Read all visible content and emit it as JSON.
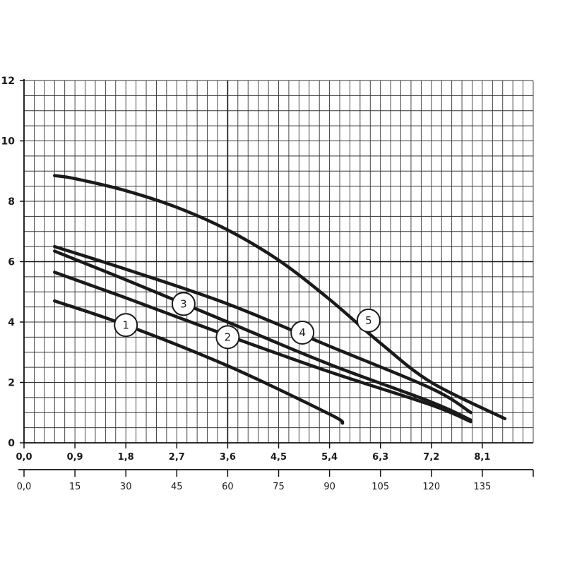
{
  "chart_data": {
    "type": "line",
    "title": "",
    "xlabel": "",
    "ylabel": "",
    "xlim": [
      0,
      9
    ],
    "ylim": [
      0,
      12
    ],
    "grid": true,
    "x_ticks": [
      "0,0",
      "0,9",
      "1,8",
      "2,7",
      "3,6",
      "4,5",
      "5,4",
      "6,3",
      "7,2",
      "8,1"
    ],
    "x_ticks_secondary": [
      "0,0",
      "15",
      "30",
      "45",
      "60",
      "75",
      "90",
      "105",
      "120",
      "135"
    ],
    "y_ticks": [
      "0",
      "2",
      "4",
      "6",
      "8",
      "10",
      "12"
    ],
    "series": [
      {
        "name": "1",
        "x": [
          0.54,
          1.8,
          3.6,
          5.4,
          5.63
        ],
        "y": [
          4.7,
          3.9,
          2.55,
          0.95,
          0.65
        ]
      },
      {
        "name": "2",
        "x": [
          0.54,
          1.8,
          3.6,
          5.4,
          7.2,
          7.9
        ],
        "y": [
          5.65,
          4.8,
          3.55,
          2.35,
          1.25,
          0.7
        ]
      },
      {
        "name": "3",
        "x": [
          0.54,
          1.8,
          3.6,
          5.4,
          7.2,
          7.9
        ],
        "y": [
          6.35,
          5.4,
          4.0,
          2.6,
          1.35,
          0.75
        ]
      },
      {
        "name": "4",
        "x": [
          0.54,
          1.8,
          3.6,
          5.4,
          7.2,
          7.9
        ],
        "y": [
          6.5,
          5.75,
          4.6,
          3.2,
          1.8,
          1.0
        ]
      },
      {
        "name": "5",
        "x": [
          0.54,
          0.9,
          1.8,
          2.7,
          3.6,
          4.5,
          5.4,
          6.3,
          7.2,
          8.5
        ],
        "y": [
          8.85,
          8.75,
          8.35,
          7.8,
          7.05,
          6.05,
          4.75,
          3.3,
          2.0,
          0.8
        ]
      }
    ],
    "labels": [
      {
        "text": "1",
        "x": 1.8,
        "y": 3.9
      },
      {
        "text": "2",
        "x": 3.6,
        "y": 3.5
      },
      {
        "text": "3",
        "x": 2.82,
        "y": 4.6
      },
      {
        "text": "4",
        "x": 4.92,
        "y": 3.65
      },
      {
        "text": "5",
        "x": 6.09,
        "y": 4.05
      }
    ]
  }
}
